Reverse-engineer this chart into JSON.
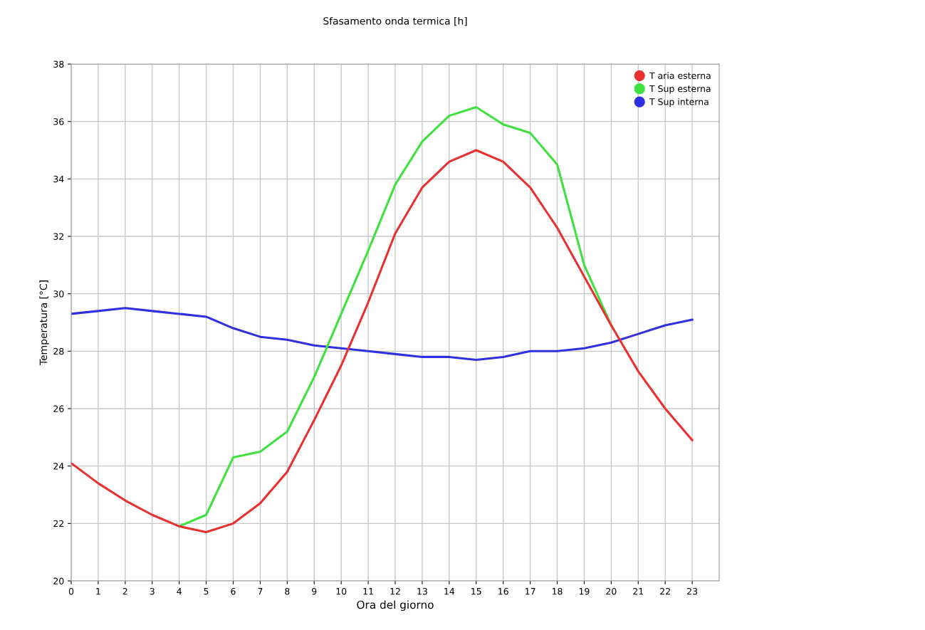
{
  "chart_data": {
    "type": "line",
    "title": "Sfasamento onda termica [h]",
    "xlabel": "Ora del giorno",
    "ylabel": "Temperatura [°C]",
    "x": [
      0,
      1,
      2,
      3,
      4,
      5,
      6,
      7,
      8,
      9,
      10,
      11,
      12,
      13,
      14,
      15,
      16,
      17,
      18,
      19,
      20,
      21,
      22,
      23
    ],
    "series": [
      {
        "name": "T Sup interna",
        "color": "#3030e0",
        "values": [
          29.3,
          29.4,
          29.5,
          29.4,
          29.3,
          29.2,
          28.8,
          28.5,
          28.4,
          28.2,
          28.1,
          28.0,
          27.9,
          27.8,
          27.8,
          27.7,
          27.8,
          28.0,
          28.0,
          28.1,
          28.3,
          28.6,
          28.9,
          29.1
        ]
      },
      {
        "name": "T Sup esterna",
        "color": "#40e040",
        "values": [
          null,
          null,
          null,
          null,
          21.9,
          22.3,
          24.3,
          24.5,
          25.2,
          27.1,
          29.3,
          31.5,
          33.8,
          35.3,
          36.2,
          36.5,
          35.9,
          35.6,
          34.5,
          31.0,
          28.9,
          null,
          null,
          null
        ]
      },
      {
        "name": "T aria esterna",
        "color": "#e83030",
        "values": [
          24.1,
          23.4,
          22.8,
          22.3,
          21.9,
          21.7,
          22.0,
          22.7,
          23.8,
          25.6,
          27.5,
          29.7,
          32.1,
          33.7,
          34.6,
          35.0,
          34.6,
          33.7,
          32.3,
          30.6,
          28.9,
          27.3,
          26.0,
          24.9
        ]
      }
    ],
    "xlim": [
      0,
      24
    ],
    "xticks": [
      0,
      1,
      2,
      3,
      4,
      5,
      6,
      7,
      8,
      9,
      10,
      11,
      12,
      13,
      14,
      15,
      16,
      17,
      18,
      19,
      20,
      21,
      22,
      23
    ],
    "ylim": [
      20,
      38
    ],
    "yticks": [
      20,
      22,
      24,
      26,
      28,
      30,
      32,
      34,
      36,
      38
    ],
    "grid": true,
    "legend": "top right",
    "line_style": "solid",
    "marker": "none"
  }
}
